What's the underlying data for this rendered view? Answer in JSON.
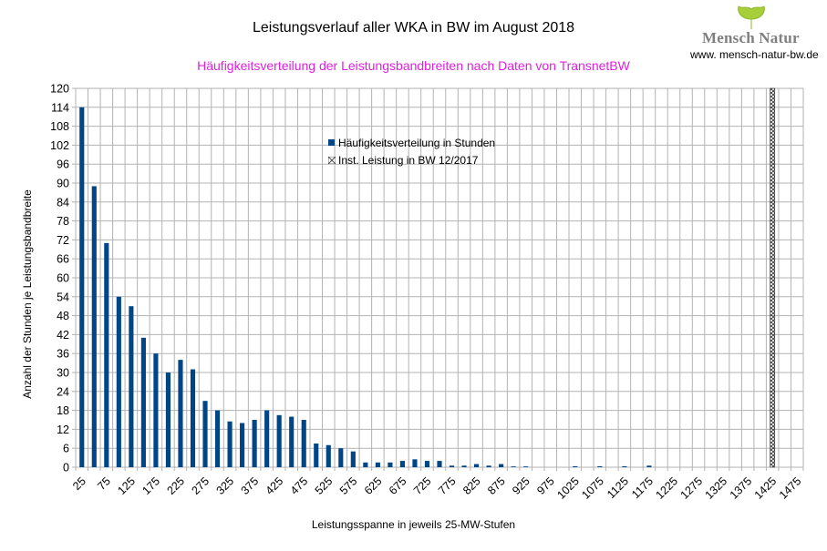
{
  "header": {
    "title": "Leistungsverlauf aller WKA in BW im August 2018",
    "subtitle": "Häufigkeitsverteilung der Leistungsbandbreiten nach Daten von TransnetBW",
    "brand_name": "Mensch Natur",
    "brand_url": "www. mensch-natur-bw.de"
  },
  "colors": {
    "bar": "#004586",
    "subtitle": "#e020e0",
    "grid": "#b3b3b3"
  },
  "chart_data": {
    "type": "bar",
    "xlabel": "Leistungsspanne in jeweils 25-MW-Stufen",
    "ylabel": "Anzahl der Stunden je Leistungsbandbreite",
    "ylim": [
      0,
      120
    ],
    "yticks": [
      0,
      6,
      12,
      18,
      24,
      30,
      36,
      42,
      48,
      54,
      60,
      66,
      72,
      78,
      84,
      90,
      96,
      102,
      108,
      114,
      120
    ],
    "x_tick_labels": [
      "25",
      "75",
      "125",
      "175",
      "225",
      "275",
      "325",
      "375",
      "425",
      "475",
      "525",
      "575",
      "625",
      "675",
      "725",
      "775",
      "825",
      "875",
      "925",
      "975",
      "1025",
      "1075",
      "1125",
      "1175",
      "1225",
      "1275",
      "1325",
      "1375",
      "1425",
      "1475"
    ],
    "categories": [
      "25",
      "50",
      "75",
      "100",
      "125",
      "150",
      "175",
      "200",
      "225",
      "250",
      "275",
      "300",
      "325",
      "350",
      "375",
      "400",
      "425",
      "450",
      "475",
      "500",
      "525",
      "550",
      "575",
      "600",
      "625",
      "650",
      "675",
      "700",
      "725",
      "750",
      "775",
      "800",
      "825",
      "850",
      "875",
      "900",
      "925",
      "950",
      "975",
      "1000",
      "1025",
      "1050",
      "1075",
      "1100",
      "1125",
      "1150",
      "1175",
      "1200",
      "1225",
      "1250",
      "1275",
      "1300",
      "1325",
      "1350",
      "1375",
      "1400",
      "1425",
      "1450",
      "1475"
    ],
    "series": [
      {
        "name": "Häufigkeitsverteilung in Stunden",
        "values": [
          114,
          89,
          71,
          54,
          51,
          41,
          36,
          30,
          34,
          31,
          21,
          18,
          14.5,
          14,
          15,
          18,
          16.5,
          16,
          15,
          7.5,
          7,
          6,
          5,
          1.5,
          1.5,
          1.5,
          2,
          2.5,
          2,
          2,
          0.5,
          0.5,
          1,
          0.5,
          1,
          0.25,
          0.25,
          0,
          0,
          0,
          0.3,
          0,
          0.3,
          0,
          0.3,
          0,
          0.5,
          0,
          0,
          0,
          0,
          0,
          0,
          0,
          0,
          0,
          0,
          0,
          0
        ]
      },
      {
        "name": "Inst. Leistung in BW 12/2017",
        "x": 1425,
        "value": 120
      }
    ],
    "grid": true,
    "legend_position": "top-center"
  }
}
